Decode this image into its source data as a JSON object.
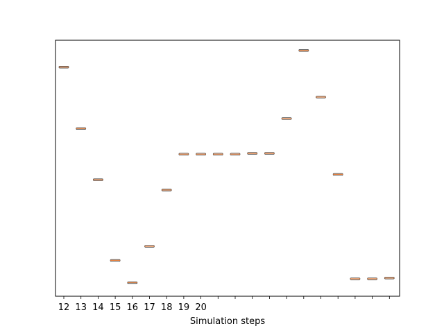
{
  "chart_data": {
    "type": "box",
    "xlabel": "Simulation steps",
    "ylabel": "",
    "tick_labels": [
      "12",
      "13",
      "14",
      "15",
      "16",
      "17",
      "18",
      "19",
      "20",
      "",
      "",
      "",
      "",
      "",
      "",
      "",
      "",
      "",
      "",
      ""
    ],
    "values": [
      0.895,
      0.655,
      0.455,
      0.14,
      0.053,
      0.195,
      0.415,
      0.555,
      0.555,
      0.555,
      0.555,
      0.558,
      0.558,
      0.694,
      0.96,
      0.778,
      0.476,
      0.068,
      0.068,
      0.071
    ],
    "ylim": [
      0.0,
      1.0
    ],
    "y_ticks_shown": false,
    "grid": false,
    "colors": {
      "median": "#e07b39",
      "box": "#444444",
      "axes": "#000000"
    }
  }
}
